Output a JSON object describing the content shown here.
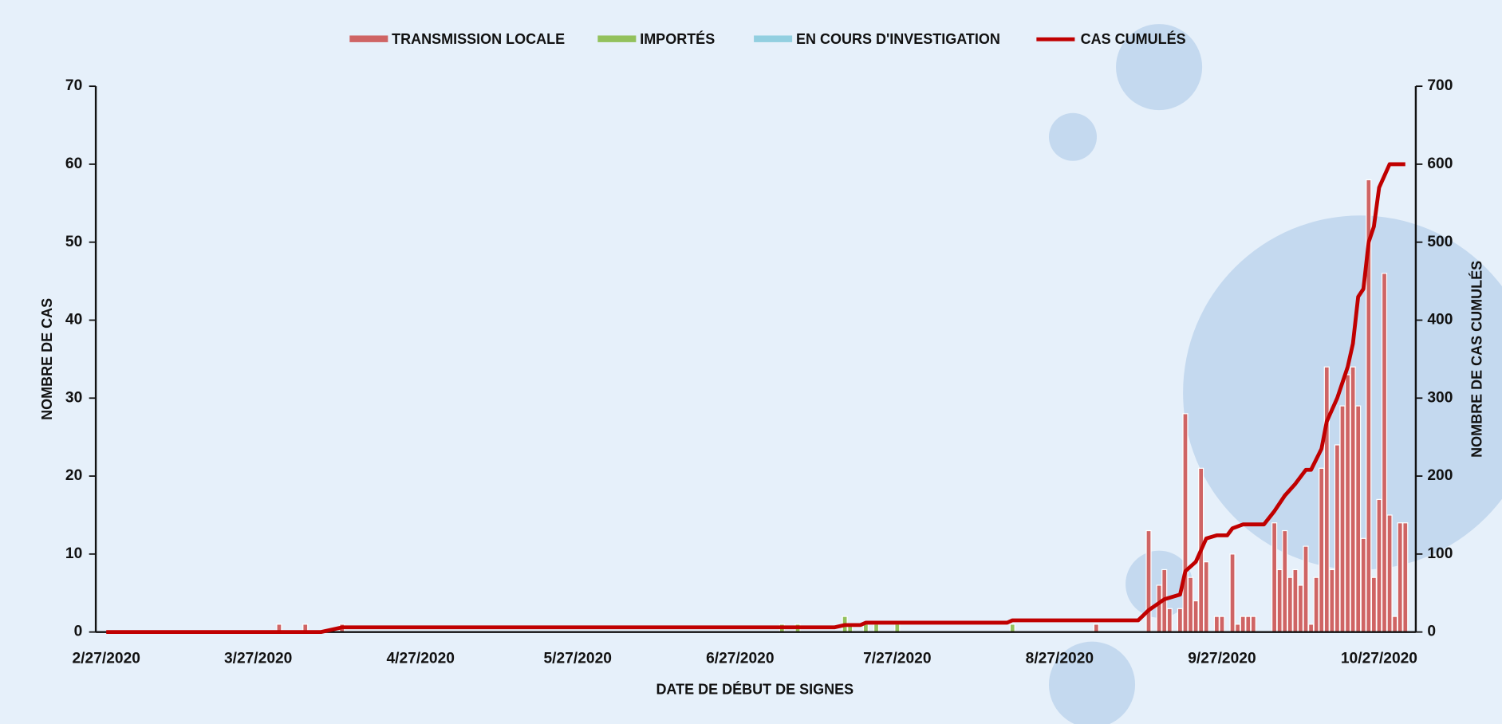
{
  "chart_data": {
    "type": "bar-line",
    "xlabel": "DATE DE DÉBUT DE SIGNES",
    "ylabel": "NOMBRE DE CAS",
    "y2label": "NOMBRE DE CAS CUMULÉS",
    "xlim": [
      "2/25/2020",
      "11/3/2020"
    ],
    "xticks": [
      "2/27/2020",
      "3/27/2020",
      "4/27/2020",
      "5/27/2020",
      "6/27/2020",
      "7/27/2020",
      "8/27/2020",
      "9/27/2020",
      "10/27/2020"
    ],
    "ylim": [
      0,
      70
    ],
    "yticks": [
      0,
      10,
      20,
      30,
      40,
      50,
      60,
      70
    ],
    "y2lim": [
      0,
      700
    ],
    "y2ticks": [
      0,
      100,
      200,
      300,
      400,
      500,
      600,
      700
    ],
    "series": [
      {
        "name": "TRANSMISSION LOCALE",
        "type": "bar",
        "color": "#cf6464",
        "x": [
          "3/31/2020",
          "4/5/2020",
          "4/12/2020",
          "9/3/2020",
          "9/13/2020",
          "9/15/2020",
          "9/16/2020",
          "9/17/2020",
          "9/19/2020",
          "9/20/2020",
          "9/21/2020",
          "9/22/2020",
          "9/23/2020",
          "9/24/2020",
          "9/26/2020",
          "9/27/2020",
          "9/29/2020",
          "9/30/2020",
          "10/1/2020",
          "10/2/2020",
          "10/3/2020",
          "10/7/2020",
          "10/8/2020",
          "10/9/2020",
          "10/10/2020",
          "10/11/2020",
          "10/12/2020",
          "10/13/2020",
          "10/14/2020",
          "10/15/2020",
          "10/16/2020",
          "10/17/2020",
          "10/18/2020",
          "10/19/2020",
          "10/20/2020",
          "10/21/2020",
          "10/22/2020",
          "10/23/2020",
          "10/24/2020",
          "10/25/2020",
          "10/26/2020",
          "10/27/2020",
          "10/28/2020",
          "10/29/2020",
          "10/30/2020",
          "10/31/2020",
          "11/1/2020"
        ],
        "values": [
          1,
          1,
          1,
          1,
          13,
          6,
          8,
          3,
          3,
          28,
          7,
          4,
          21,
          9,
          2,
          2,
          10,
          1,
          2,
          2,
          2,
          14,
          8,
          13,
          7,
          8,
          6,
          11,
          1,
          7,
          21,
          34,
          8,
          24,
          29,
          33,
          34,
          29,
          12,
          58,
          7,
          17,
          46,
          15,
          2,
          14,
          14
        ]
      },
      {
        "name": "IMPORTÉS",
        "type": "bar",
        "color": "#93c15c",
        "x": [
          "7/5/2020",
          "7/8/2020",
          "7/17/2020",
          "7/18/2020",
          "7/21/2020",
          "7/23/2020",
          "7/27/2020",
          "8/18/2020"
        ],
        "values": [
          1,
          1,
          2,
          1,
          1,
          1,
          1,
          1
        ]
      },
      {
        "name": "EN COURS D'INVESTIGATION",
        "type": "bar",
        "color": "#92cfe0",
        "x": [],
        "values": []
      },
      {
        "name": "CAS CUMULÉS",
        "type": "line",
        "axis": "y2",
        "color": "#c00000",
        "x": [
          "2/27/2020",
          "4/8/2020",
          "4/12/2020",
          "7/15/2020",
          "7/17/2020",
          "7/20/2020",
          "7/21/2020",
          "8/17/2020",
          "8/18/2020",
          "9/11/2020",
          "9/13/2020",
          "9/16/2020",
          "9/19/2020",
          "9/20/2020",
          "9/22/2020",
          "9/24/2020",
          "9/26/2020",
          "9/28/2020",
          "9/29/2020",
          "10/1/2020",
          "10/5/2020",
          "10/7/2020",
          "10/9/2020",
          "10/11/2020",
          "10/13/2020",
          "10/14/2020",
          "10/16/2020",
          "10/17/2020",
          "10/19/2020",
          "10/21/2020",
          "10/22/2020",
          "10/23/2020",
          "10/24/2020",
          "10/25/2020",
          "10/26/2020",
          "10/27/2020",
          "10/28/2020",
          "10/29/2020",
          "11/1/2020"
        ],
        "values": [
          0,
          0,
          6,
          6,
          9,
          9,
          12,
          12,
          15,
          15,
          28,
          42,
          48,
          78,
          90,
          120,
          124,
          124,
          133,
          138,
          138,
          155,
          175,
          190,
          208,
          208,
          235,
          270,
          300,
          340,
          370,
          430,
          440,
          500,
          520,
          570,
          585,
          600,
          600
        ]
      }
    ]
  }
}
